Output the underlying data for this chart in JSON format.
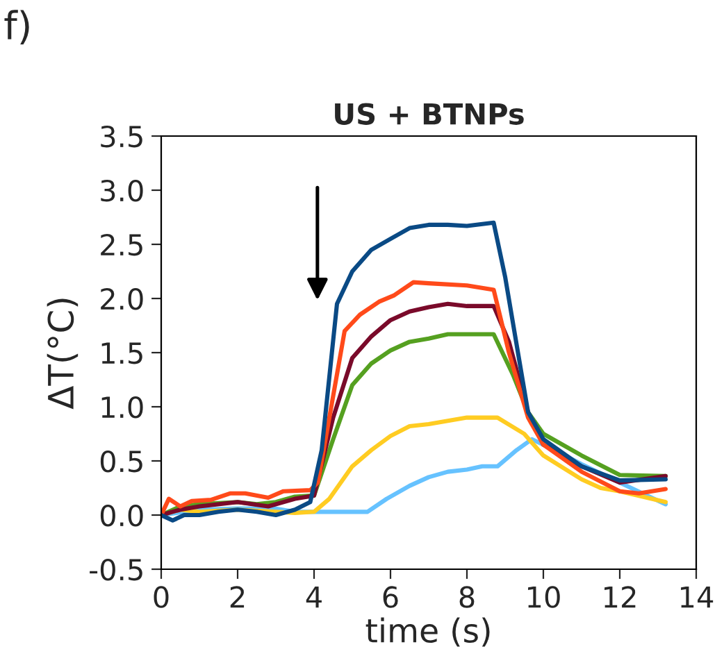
{
  "chart_data": {
    "type": "line",
    "title": "US + BTNPs",
    "xlabel": "time (s)",
    "ylabel": "ΔT(°C)",
    "annotations": [
      "f)"
    ],
    "xlim": [
      0,
      14
    ],
    "xticks": [
      0,
      2,
      4,
      6,
      8,
      10,
      12,
      14
    ],
    "ylim": [
      -0.5,
      3.5
    ],
    "yticks": [
      {
        "value": -0.5,
        "label": "-0.5"
      },
      {
        "value": 0,
        "label": "0.0"
      },
      {
        "value": 0.5,
        "label": "0.5"
      },
      {
        "value": 1,
        "label": "1.0"
      },
      {
        "value": 1.5,
        "label": "1.5"
      },
      {
        "value": 2,
        "label": "2.0"
      },
      {
        "value": 2.5,
        "label": "2.5"
      },
      {
        "value": 3,
        "label": "3.0"
      },
      {
        "value": 3.5,
        "label": "3.5"
      }
    ],
    "grid": false,
    "legend": false,
    "marker": "none",
    "line_style": "solid",
    "series": [
      {
        "color": "#66c2ff",
        "x": [
          0,
          1,
          2,
          3,
          3.5,
          4,
          5,
          5.4,
          5.9,
          6.5,
          7,
          7.5,
          8,
          8.4,
          8.8,
          9.3,
          9.7,
          10.3,
          11,
          12,
          13.2
        ],
        "values": [
          0,
          0.05,
          0.06,
          0.06,
          0.03,
          0.03,
          0.03,
          0.03,
          0.15,
          0.27,
          0.35,
          0.4,
          0.42,
          0.45,
          0.45,
          0.6,
          0.7,
          0.6,
          0.47,
          0.3,
          0.1
        ]
      },
      {
        "color": "#ffcc22",
        "x": [
          0,
          0.5,
          1,
          2,
          3,
          3.5,
          4,
          4.4,
          5,
          5.5,
          6,
          6.5,
          7,
          8,
          8.8,
          9.5,
          10,
          11,
          11.5,
          12,
          13.2
        ],
        "values": [
          0,
          0.05,
          0.03,
          0.05,
          0.03,
          0.02,
          0.03,
          0.15,
          0.45,
          0.6,
          0.73,
          0.82,
          0.84,
          0.9,
          0.9,
          0.75,
          0.55,
          0.33,
          0.25,
          0.22,
          0.12
        ]
      },
      {
        "color": "#55a020",
        "x": [
          0,
          0.5,
          1,
          2,
          2.5,
          3,
          3.5,
          4,
          4.5,
          5,
          5.5,
          6,
          6.5,
          7,
          7.5,
          8,
          8.7,
          9.2,
          9.6,
          10,
          11,
          12,
          13.2
        ],
        "values": [
          0,
          0.08,
          0.1,
          0.12,
          0.1,
          0.12,
          0.17,
          0.18,
          0.7,
          1.2,
          1.4,
          1.52,
          1.6,
          1.63,
          1.67,
          1.67,
          1.67,
          1.3,
          0.95,
          0.75,
          0.55,
          0.37,
          0.36
        ]
      },
      {
        "color": "#7a0a2a",
        "x": [
          0,
          0.5,
          1,
          2,
          2.8,
          3.5,
          4,
          4.5,
          5,
          5.5,
          6,
          6.5,
          7,
          7.5,
          8,
          8.7,
          9.1,
          9.6,
          10,
          11,
          12,
          13.2
        ],
        "values": [
          0,
          0.05,
          0.08,
          0.12,
          0.08,
          0.15,
          0.18,
          0.9,
          1.45,
          1.65,
          1.8,
          1.88,
          1.92,
          1.95,
          1.93,
          1.93,
          1.6,
          0.95,
          0.65,
          0.45,
          0.3,
          0.36
        ]
      },
      {
        "color": "#ff4a1a",
        "x": [
          0,
          0.2,
          0.5,
          0.8,
          1.3,
          1.8,
          2.2,
          2.8,
          3.2,
          3.9,
          4.1,
          4.5,
          4.8,
          5.2,
          5.7,
          6.1,
          6.6,
          7,
          8,
          8.7,
          9.1,
          9.6,
          10,
          11,
          12,
          12.5,
          13.2
        ],
        "values": [
          0,
          0.15,
          0.08,
          0.13,
          0.14,
          0.2,
          0.2,
          0.16,
          0.22,
          0.23,
          0.3,
          1.1,
          1.7,
          1.85,
          1.97,
          2.03,
          2.15,
          2.14,
          2.12,
          2.08,
          1.5,
          0.9,
          0.65,
          0.4,
          0.22,
          0.2,
          0.24
        ]
      },
      {
        "color": "#0a4a85",
        "x": [
          0,
          0.3,
          0.6,
          1,
          1.5,
          2,
          2.5,
          3,
          3.5,
          3.9,
          4.2,
          4.6,
          5,
          5.5,
          6,
          6.5,
          7,
          7.5,
          8,
          8.7,
          9,
          9.6,
          10,
          11,
          12,
          13.2
        ],
        "values": [
          0,
          -0.05,
          0,
          0,
          0.03,
          0.05,
          0.03,
          0,
          0.05,
          0.12,
          0.6,
          1.95,
          2.25,
          2.45,
          2.55,
          2.65,
          2.68,
          2.68,
          2.67,
          2.7,
          2.2,
          0.95,
          0.7,
          0.45,
          0.32,
          0.33
        ]
      }
    ]
  }
}
